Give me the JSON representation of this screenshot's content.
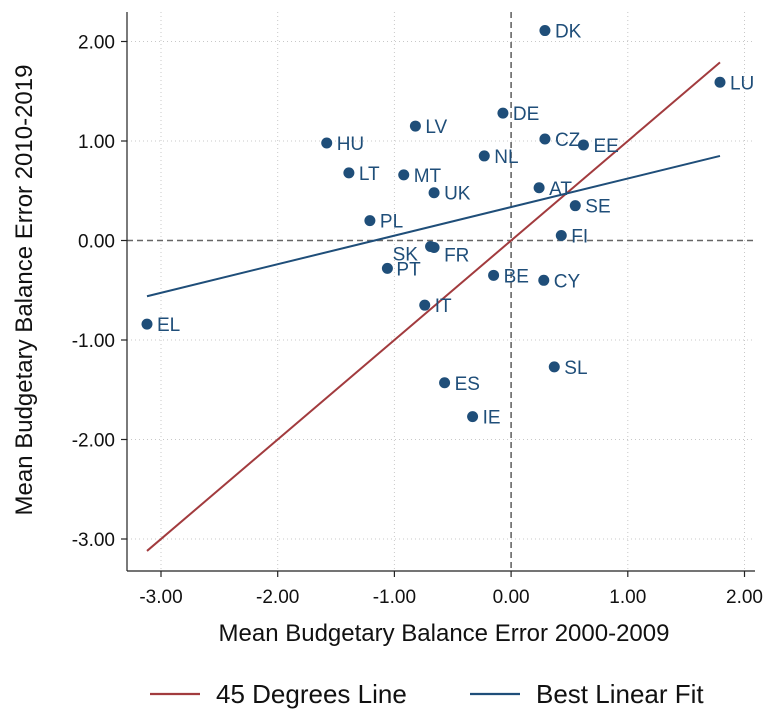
{
  "chart_data": {
    "type": "scatter",
    "title": "",
    "xlabel": "Mean Budgetary Balance Error 2000-2009",
    "ylabel": "Mean Budgetary Balance Error 2010-2019",
    "xlim": [
      -3.15,
      1.85
    ],
    "ylim": [
      -3.2,
      2.25
    ],
    "xticks": [
      -3.0,
      -2.0,
      -1.0,
      0.0,
      1.0,
      2.0
    ],
    "yticks": [
      -3.0,
      -2.0,
      -1.0,
      0.0,
      1.0,
      2.0
    ],
    "xtick_labels": [
      "-3.00",
      "-2.00",
      "-1.00",
      "0.00",
      "1.00",
      "2.00"
    ],
    "ytick_labels": [
      "-3.00",
      "-2.00",
      "-1.00",
      "0.00",
      "1.00",
      "2.00"
    ],
    "grid": true,
    "reference_lines": {
      "x": 0,
      "y": 0,
      "style": "dashed"
    },
    "colors": {
      "points": "#1f4e79",
      "labels": "#1f4e79",
      "line_45": "#a23b3e",
      "fit": "#1f4e79",
      "grid": "#c8c8c8"
    },
    "points": [
      {
        "label": "DK",
        "x": 0.29,
        "y": 2.11
      },
      {
        "label": "LU",
        "x": 1.79,
        "y": 1.59
      },
      {
        "label": "DE",
        "x": -0.07,
        "y": 1.28
      },
      {
        "label": "LV",
        "x": -0.82,
        "y": 1.15
      },
      {
        "label": "CZ",
        "x": 0.29,
        "y": 1.02
      },
      {
        "label": "HU",
        "x": -1.58,
        "y": 0.98
      },
      {
        "label": "EE",
        "x": 0.62,
        "y": 0.96
      },
      {
        "label": "NL",
        "x": -0.23,
        "y": 0.85
      },
      {
        "label": "LT",
        "x": -1.39,
        "y": 0.68
      },
      {
        "label": "MT",
        "x": -0.92,
        "y": 0.66
      },
      {
        "label": "AT",
        "x": 0.24,
        "y": 0.53
      },
      {
        "label": "UK",
        "x": -0.66,
        "y": 0.48
      },
      {
        "label": "SE",
        "x": 0.55,
        "y": 0.35
      },
      {
        "label": "PL",
        "x": -1.21,
        "y": 0.2
      },
      {
        "label": "FI",
        "x": 0.43,
        "y": 0.05
      },
      {
        "label": "SK",
        "x": -0.69,
        "y": -0.06
      },
      {
        "label": "FR",
        "x": -0.66,
        "y": -0.07
      },
      {
        "label": "PT",
        "x": -1.06,
        "y": -0.28
      },
      {
        "label": "BE",
        "x": -0.15,
        "y": -0.35
      },
      {
        "label": "CY",
        "x": 0.28,
        "y": -0.4
      },
      {
        "label": "IT",
        "x": -0.74,
        "y": -0.65
      },
      {
        "label": "EL",
        "x": -3.12,
        "y": -0.84
      },
      {
        "label": "SL",
        "x": 0.37,
        "y": -1.27
      },
      {
        "label": "ES",
        "x": -0.57,
        "y": -1.43
      },
      {
        "label": "IE",
        "x": -0.33,
        "y": -1.77
      }
    ],
    "lines": [
      {
        "name": "45 Degrees Line",
        "color": "#a23b3e",
        "x": [
          -3.12,
          1.79
        ],
        "y": [
          -3.12,
          1.79
        ]
      },
      {
        "name": "Best Linear Fit",
        "color": "#1f4e79",
        "x": [
          -3.12,
          1.79
        ],
        "y": [
          -0.56,
          0.85
        ]
      }
    ],
    "legend": {
      "position": "bottom"
    }
  }
}
